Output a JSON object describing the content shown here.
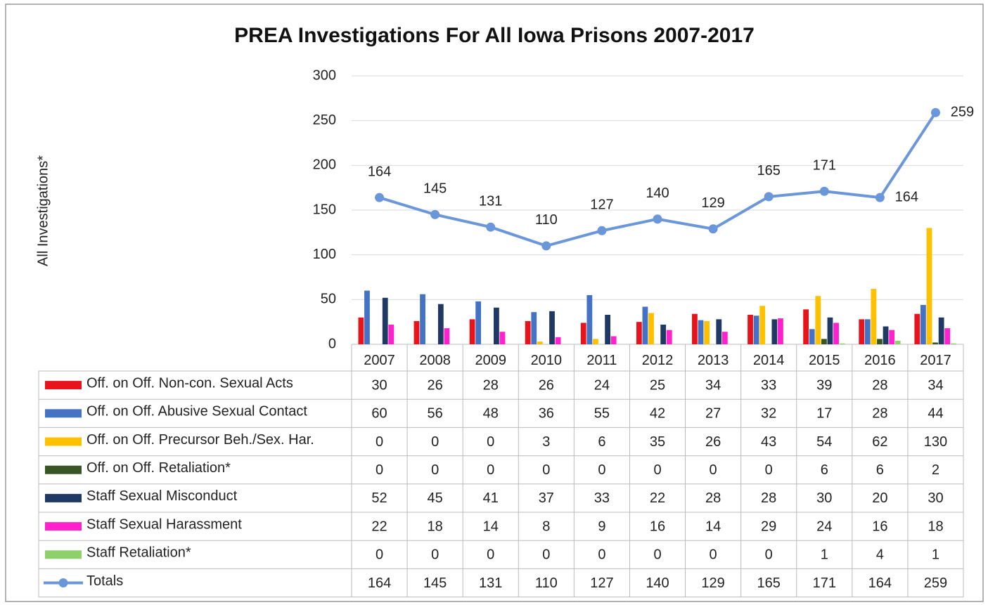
{
  "chart_data": {
    "type": "bar",
    "title": "PREA Investigations For All Iowa Prisons 2007-2017",
    "y_label": "All Investigations*",
    "categories": [
      "2007",
      "2008",
      "2009",
      "2010",
      "2011",
      "2012",
      "2013",
      "2014",
      "2015",
      "2016",
      "2017"
    ],
    "ylim": [
      0,
      300
    ],
    "yticks": [
      0,
      50,
      100,
      150,
      200,
      250,
      300
    ],
    "grid": true,
    "series": [
      {
        "name": "Off. on Off. Non-con. Sexual Acts",
        "color": "#e8141c",
        "values": [
          30,
          26,
          28,
          26,
          24,
          25,
          34,
          33,
          39,
          28,
          34
        ]
      },
      {
        "name": "Off. on Off. Abusive Sexual Contact",
        "color": "#4472c4",
        "values": [
          60,
          56,
          48,
          36,
          55,
          42,
          27,
          32,
          17,
          28,
          44
        ]
      },
      {
        "name": "Off. on Off. Precursor Beh./Sex. Har.",
        "color": "#ffc000",
        "values": [
          0,
          0,
          0,
          3,
          6,
          35,
          26,
          43,
          54,
          62,
          130
        ]
      },
      {
        "name": "Off. on Off. Retaliation*",
        "color": "#375623",
        "values": [
          0,
          0,
          0,
          0,
          0,
          0,
          0,
          0,
          6,
          6,
          2
        ]
      },
      {
        "name": "Staff Sexual Misconduct",
        "color": "#1f3864",
        "values": [
          52,
          45,
          41,
          37,
          33,
          22,
          28,
          28,
          30,
          20,
          30
        ]
      },
      {
        "name": "Staff Sexual Harassment",
        "color": "#ff22cc",
        "values": [
          22,
          18,
          14,
          8,
          9,
          16,
          14,
          29,
          24,
          16,
          18
        ]
      },
      {
        "name": "Staff Retaliation*",
        "color": "#8ed06a",
        "values": [
          0,
          0,
          0,
          0,
          0,
          0,
          0,
          0,
          1,
          4,
          1
        ]
      },
      {
        "name": "Totals",
        "type": "line",
        "color": "#6a96da",
        "values": [
          164,
          145,
          131,
          110,
          127,
          140,
          129,
          165,
          171,
          164,
          259
        ]
      }
    ]
  }
}
